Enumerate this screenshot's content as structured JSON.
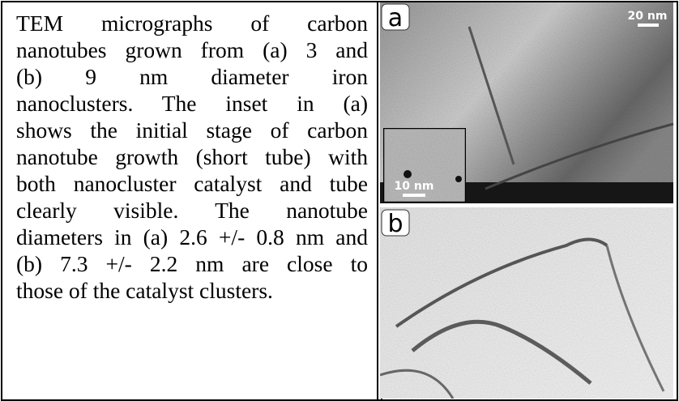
{
  "caption": {
    "lines": [
      "TEM micrographs of carbon",
      "nanotubes grown from (a) 3 and",
      "(b) 9 nm diameter iron",
      "nanoclusters. The inset in (a)",
      "shows the initial stage of carbon",
      "nanotube growth (short tube) with",
      "both nanocluster catalyst and tube",
      "clearly visible. The nanotube",
      "diameters in (a) 2.6 +/- 0.8 nm and",
      "(b) 7.3 +/- 2.2 nm are close to",
      "those of the catalyst clusters."
    ]
  },
  "panels": [
    {
      "label": "a",
      "scale_bar": "20 nm",
      "inset_scale_bar": "10 nm"
    },
    {
      "label": "b"
    }
  ]
}
